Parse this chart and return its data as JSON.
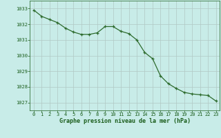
{
  "x": [
    0,
    1,
    2,
    3,
    4,
    5,
    6,
    7,
    8,
    9,
    10,
    11,
    12,
    13,
    14,
    15,
    16,
    17,
    18,
    19,
    20,
    21,
    22,
    23
  ],
  "y": [
    1032.9,
    1032.5,
    1032.3,
    1032.1,
    1031.75,
    1031.5,
    1031.35,
    1031.35,
    1031.45,
    1031.85,
    1031.85,
    1031.55,
    1031.4,
    1031.0,
    1030.2,
    1029.8,
    1028.7,
    1028.2,
    1027.9,
    1027.65,
    1027.55,
    1027.5,
    1027.45,
    1027.1
  ],
  "line_color": "#2d6b2d",
  "marker": "+",
  "bg_color": "#c8ece8",
  "grid_color": "#b0c8c4",
  "xlabel": "Graphe pression niveau de la mer (hPa)",
  "xlabel_color": "#1a5c1a",
  "tick_color": "#1a5c1a",
  "ylim": [
    1026.5,
    1033.5
  ],
  "xlim": [
    -0.5,
    23.5
  ],
  "yticks": [
    1027,
    1028,
    1029,
    1030,
    1031,
    1032,
    1033
  ],
  "xticks": [
    0,
    1,
    2,
    3,
    4,
    5,
    6,
    7,
    8,
    9,
    10,
    11,
    12,
    13,
    14,
    15,
    16,
    17,
    18,
    19,
    20,
    21,
    22,
    23
  ]
}
